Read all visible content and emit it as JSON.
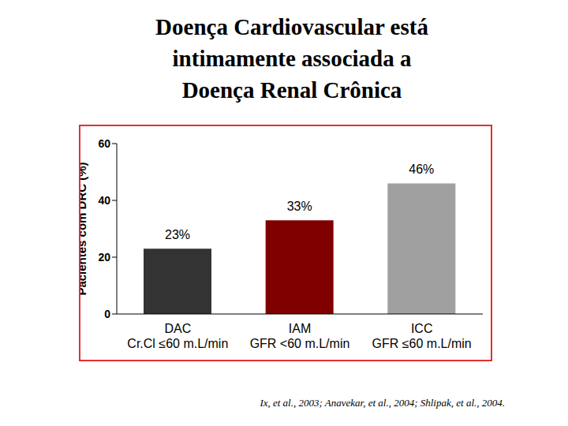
{
  "chart_data": {
    "type": "bar",
    "title": "Doença Cardiovascular está\nintimamente associada a\nDoença Renal Crônica",
    "y_label": "Pacientes com DRC (%)",
    "categories": [
      "DAC\nCr.Cl ≤60 m.L/min",
      "IAM\nGFR <60 m.L/min",
      "ICC\nGFR ≤60 m.L/min"
    ],
    "values": [
      23,
      33,
      46
    ],
    "value_labels": [
      "23%",
      "33%",
      "46%"
    ],
    "colors": [
      "#333333",
      "#800000",
      "#a0a0a0"
    ],
    "ylim": [
      0,
      60
    ],
    "yticks": [
      0,
      20,
      40,
      60
    ],
    "data_labels": true,
    "source": "Ix, et al., 2003; Anavekar, et al., 2004; Shlipak, et al., 2004."
  }
}
